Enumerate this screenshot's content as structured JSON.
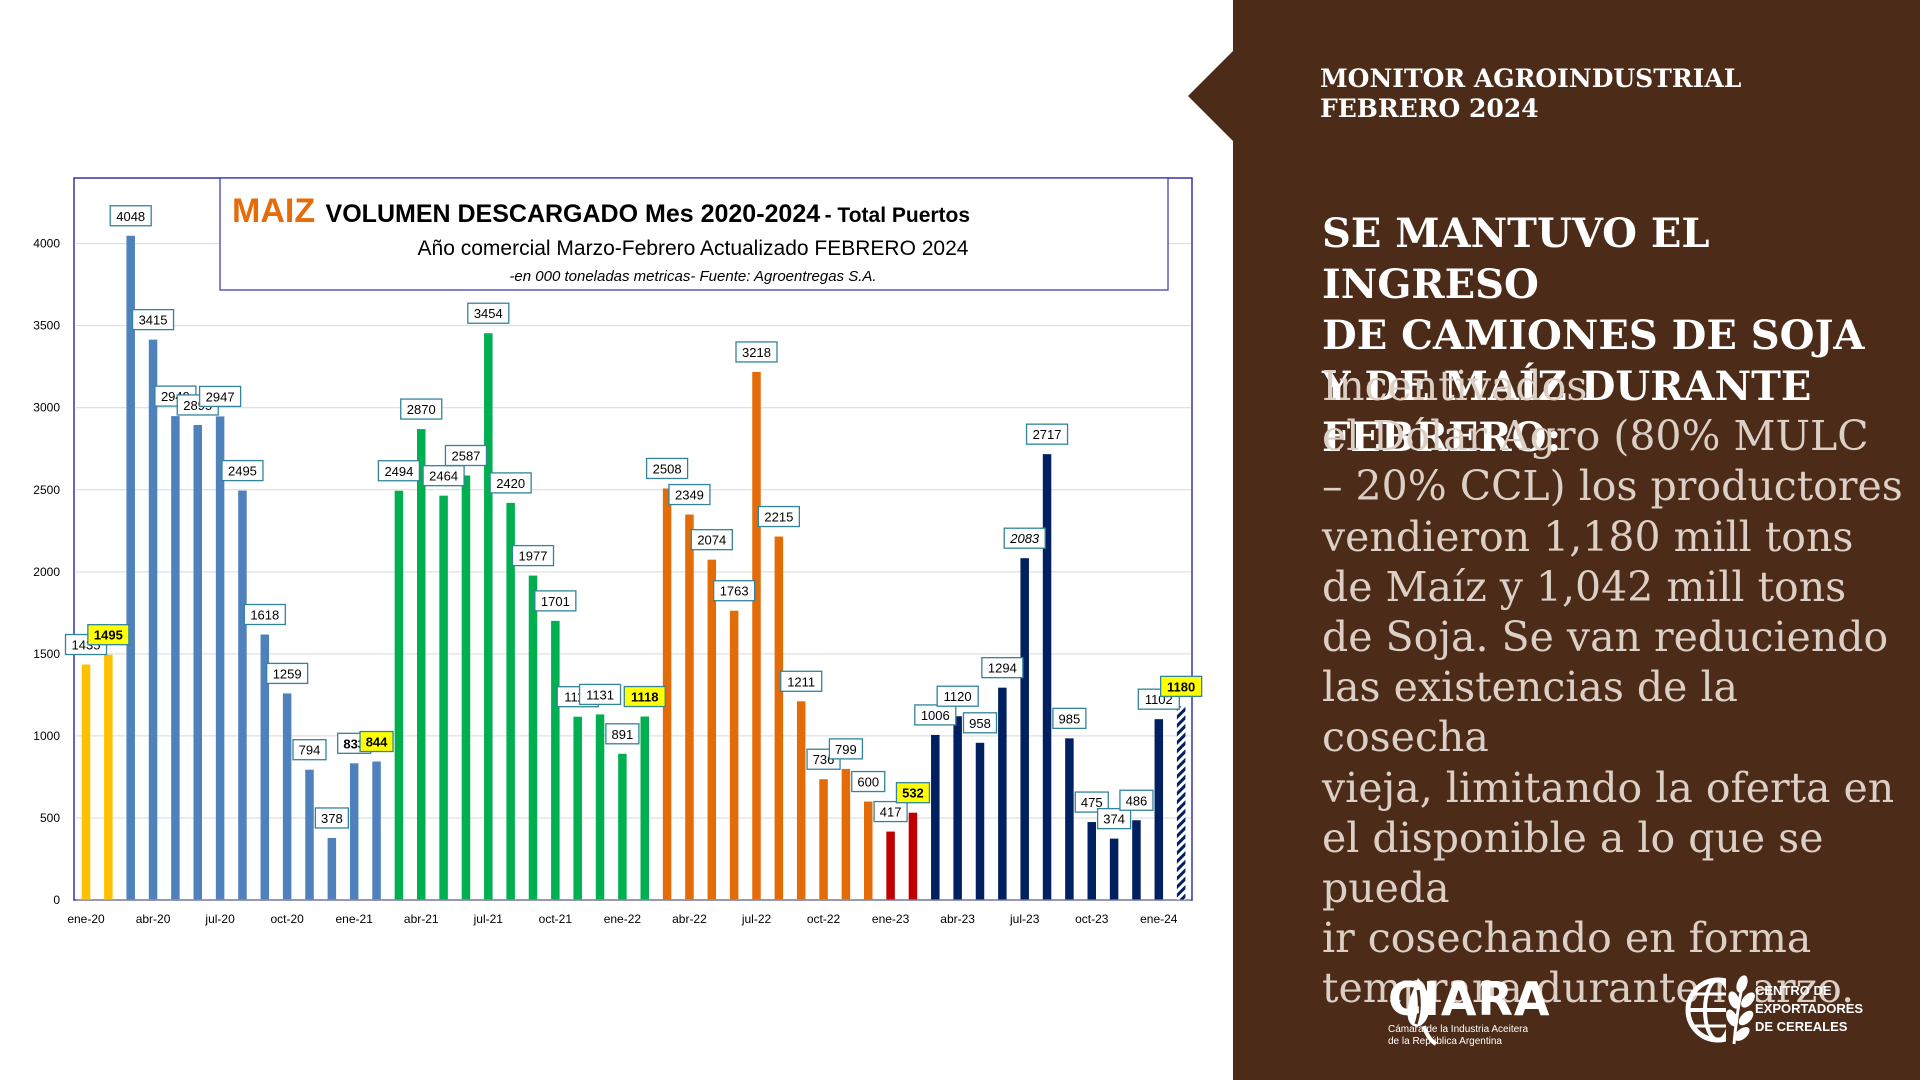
{
  "panel": {
    "monitor_line1": "MONITOR AGROINDUSTRIAL",
    "monitor_line2": "FEBRERO 2024",
    "headline": "SE MANTUVO EL INGRESO\nDE CAMIONES DE SOJA\nY DE MAÍZ DURANTE\nFEBRERO:",
    "body": "Incentivados\nel Dólar Agro (80% MULC\n– 20% CCL) los productores\nvendieron 1,180 mill tons\nde Maíz y 1,042 mill tons\nde Soja. Se van reduciendo\nlas existencias de la cosecha\nvieja, limitando la oferta en\nel disponible a lo que se pueda\nir cosechando en forma\ntemprana durante marzo.",
    "ciara_name": "CIARA",
    "ciara_sub": "Cámara de la Industria Aceitera\nde la República Argentina",
    "cec_text": "CENTRO DE\nEXPORTADORES\nDE CEREALES",
    "background_color": "#4c2c19"
  },
  "chart_data": {
    "type": "bar",
    "title_highlight": "MAIZ",
    "title": "VOLUMEN DESCARGADO  Mes  2020-2024",
    "title_suffix": " - Total Puertos",
    "subtitle": "Año comercial Marzo-Febrero Actualizado FEBRERO  2024",
    "note": "-en 000 toneladas metricas- Fuente: Agroentregas S.A.",
    "ylim": [
      0,
      4400
    ],
    "yticks": [
      0,
      500,
      1000,
      1500,
      2000,
      2500,
      3000,
      3500,
      4000
    ],
    "xtick_labels": [
      "ene-20",
      "abr-20",
      "jul-20",
      "oct-20",
      "ene-21",
      "abr-21",
      "jul-21",
      "oct-21",
      "ene-22",
      "abr-22",
      "jul-22",
      "oct-22",
      "ene-23",
      "abr-23",
      "jul-23",
      "oct-23",
      "ene-24"
    ],
    "xtick_every": 3,
    "grid": true,
    "colors": {
      "2019": "#ffc000",
      "2020": "#4f81bd",
      "2021": "#00b050",
      "2022": "#e36c09",
      "2023": "#c00000",
      "2024": "#002060",
      "title_highlight": "#e46c0a",
      "highlight_label": "#ffff00",
      "label_border": "#31849b"
    },
    "bars": [
      {
        "value": 1435,
        "label": "1435",
        "group": "2019"
      },
      {
        "value": 1495,
        "label": "1495",
        "group": "2019",
        "highlight": true
      },
      {
        "value": 4048,
        "label": "4048",
        "group": "2020"
      },
      {
        "value": 3415,
        "label": "3415",
        "group": "2020"
      },
      {
        "value": 2949,
        "label": "2949",
        "group": "2020"
      },
      {
        "value": 2895,
        "label": "2895",
        "group": "2020"
      },
      {
        "value": 2947,
        "label": "2947",
        "group": "2020"
      },
      {
        "value": 2495,
        "label": "2495",
        "group": "2020"
      },
      {
        "value": 1618,
        "label": "1618",
        "group": "2020"
      },
      {
        "value": 1259,
        "label": "1259",
        "group": "2020"
      },
      {
        "value": 794,
        "label": "794",
        "group": "2020"
      },
      {
        "value": 378,
        "label": "378",
        "group": "2020"
      },
      {
        "value": 833,
        "label": "833",
        "group": "2020",
        "bold": true
      },
      {
        "value": 844,
        "label": "844",
        "group": "2020",
        "highlight": true
      },
      {
        "value": 2494,
        "label": "2494",
        "group": "2021"
      },
      {
        "value": 2870,
        "label": "2870",
        "group": "2021"
      },
      {
        "value": 2464,
        "label": "2464",
        "group": "2021"
      },
      {
        "value": 2587,
        "label": "2587",
        "group": "2021"
      },
      {
        "value": 3454,
        "label": "3454",
        "group": "2021"
      },
      {
        "value": 2420,
        "label": "2420",
        "group": "2021"
      },
      {
        "value": 1977,
        "label": "1977",
        "group": "2021"
      },
      {
        "value": 1701,
        "label": "1701",
        "group": "2021"
      },
      {
        "value": 1117,
        "label": "1117",
        "group": "2021"
      },
      {
        "value": 1131,
        "label": "1131",
        "group": "2021"
      },
      {
        "value": 891,
        "label": "891",
        "group": "2021"
      },
      {
        "value": 1118,
        "label": "1118",
        "group": "2021",
        "highlight": true
      },
      {
        "value": 2508,
        "label": "2508",
        "group": "2022"
      },
      {
        "value": 2349,
        "label": "2349",
        "group": "2022"
      },
      {
        "value": 2074,
        "label": "2074",
        "group": "2022"
      },
      {
        "value": 1763,
        "label": "1763",
        "group": "2022"
      },
      {
        "value": 3218,
        "label": "3218",
        "group": "2022"
      },
      {
        "value": 2215,
        "label": "2215",
        "group": "2022"
      },
      {
        "value": 1211,
        "label": "1211",
        "group": "2022"
      },
      {
        "value": 736,
        "label": "736",
        "group": "2022"
      },
      {
        "value": 799,
        "label": "799",
        "group": "2022"
      },
      {
        "value": 600,
        "label": "600",
        "group": "2022"
      },
      {
        "value": 417,
        "label": "417",
        "group": "2023"
      },
      {
        "value": 532,
        "label": "532",
        "group": "2023",
        "highlight": true
      },
      {
        "value": 1006,
        "label": "1006",
        "group": "2024"
      },
      {
        "value": 1120,
        "label": "1120",
        "group": "2024"
      },
      {
        "value": 958,
        "label": "958",
        "group": "2024"
      },
      {
        "value": 1294,
        "label": "1294",
        "group": "2024"
      },
      {
        "value": 2083,
        "label": "2083",
        "group": "2024",
        "italic": true
      },
      {
        "value": 2717,
        "label": "2717",
        "group": "2024"
      },
      {
        "value": 985,
        "label": "985",
        "group": "2024"
      },
      {
        "value": 475,
        "label": "475",
        "group": "2024"
      },
      {
        "value": 374,
        "label": "374",
        "group": "2024"
      },
      {
        "value": 486,
        "label": "486",
        "group": "2024"
      },
      {
        "value": 1102,
        "label": "1102",
        "group": "2024"
      },
      {
        "value": 1180,
        "label": "1180",
        "group": "2024",
        "highlight": true,
        "hatched": true
      }
    ]
  }
}
